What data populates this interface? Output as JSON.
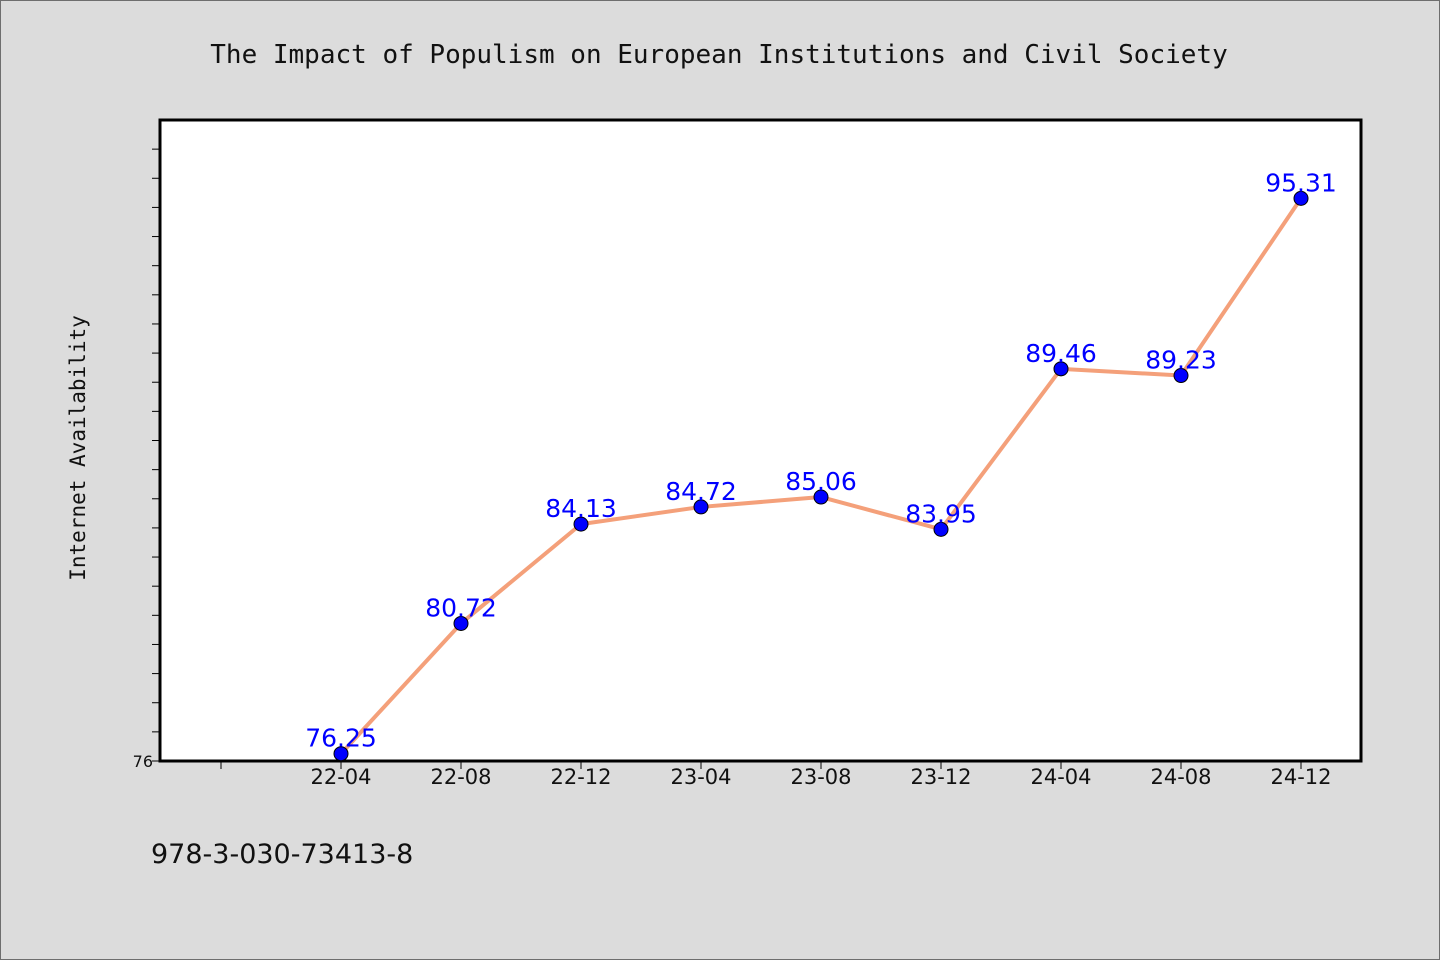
{
  "chart_data": {
    "type": "line",
    "title": "The Impact of Populism on European Institutions and Civil Society",
    "xlabel": "",
    "ylabel": "Internet Availability",
    "categories": [
      "22-04",
      "22-08",
      "22-12",
      "23-04",
      "23-08",
      "23-12",
      "24-04",
      "24-08",
      "24-12"
    ],
    "series": [
      {
        "values": [
          76.25,
          80.72,
          84.13,
          84.72,
          85.06,
          83.95,
          89.46,
          89.23,
          95.31
        ],
        "labels": [
          "76.25",
          "80.72",
          "84.13",
          "84.72",
          "85.06",
          "83.95",
          "89.46",
          "89.23",
          "95.31"
        ],
        "line_color": "#f4a07a",
        "marker_color": "#0000ff",
        "label_color": "#0000ff"
      }
    ],
    "y_tick_labels": [
      "76"
    ],
    "ylim": [
      76,
      98
    ],
    "grid": false,
    "legend": "none"
  },
  "footer": {
    "isbn": "978-3-030-73413-8"
  },
  "colors": {
    "background": "#dcdcdc",
    "plot_background": "#ffffff",
    "axis": "#000000"
  }
}
